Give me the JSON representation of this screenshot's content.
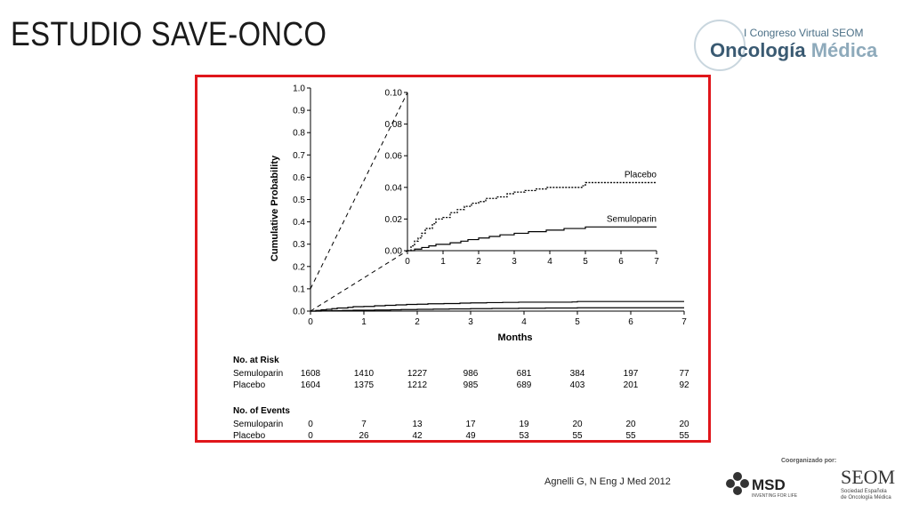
{
  "slide": {
    "title": "ESTUDIO SAVE-ONCO",
    "citation": "Agnelli G, N Eng J Med 2012"
  },
  "logos": {
    "congress_line1": "I Congreso Virtual SEOM",
    "congress_line2a": "ncología",
    "congress_line2b": "Médica",
    "coorganized": "Coorganizado por:",
    "msd": "MSD",
    "msd_sub": "INVENTING FOR LIFE",
    "seom": "SEOM",
    "seom_sub1": "Sociedad Española",
    "seom_sub2": "de Oncología Médica"
  },
  "colors": {
    "frame": "#e0161b",
    "title": "#1a1a1a"
  },
  "chart_data": {
    "type": "line",
    "xlabel": "Months",
    "ylabel": "Cumulative Probability",
    "xlim": [
      0,
      7
    ],
    "ylim": [
      0,
      1.0
    ],
    "x_ticks": [
      "0",
      "1",
      "2",
      "3",
      "4",
      "5",
      "6",
      "7"
    ],
    "y_ticks": [
      "0.0",
      "0.1",
      "0.2",
      "0.3",
      "0.4",
      "0.5",
      "0.6",
      "0.7",
      "0.8",
      "0.9",
      "1.0"
    ],
    "series": [
      {
        "name": "Placebo",
        "style": "dotted-step",
        "points": [
          [
            0,
            0
          ],
          [
            0.1,
            0.003
          ],
          [
            0.2,
            0.006
          ],
          [
            0.3,
            0.008
          ],
          [
            0.4,
            0.011
          ],
          [
            0.5,
            0.014
          ],
          [
            0.7,
            0.017
          ],
          [
            0.8,
            0.02
          ],
          [
            1.0,
            0.021
          ],
          [
            1.2,
            0.024
          ],
          [
            1.4,
            0.026
          ],
          [
            1.6,
            0.028
          ],
          [
            1.8,
            0.03
          ],
          [
            2.0,
            0.031
          ],
          [
            2.2,
            0.033
          ],
          [
            2.5,
            0.034
          ],
          [
            2.8,
            0.036
          ],
          [
            3.0,
            0.037
          ],
          [
            3.3,
            0.038
          ],
          [
            3.6,
            0.039
          ],
          [
            3.9,
            0.04
          ],
          [
            4.5,
            0.04
          ],
          [
            4.9,
            0.041
          ],
          [
            5.0,
            0.043
          ],
          [
            7,
            0.043
          ]
        ]
      },
      {
        "name": "Semuloparin",
        "style": "solid-step",
        "points": [
          [
            0,
            0
          ],
          [
            0.2,
            0.001
          ],
          [
            0.4,
            0.002
          ],
          [
            0.6,
            0.003
          ],
          [
            0.8,
            0.004
          ],
          [
            1.0,
            0.004
          ],
          [
            1.2,
            0.005
          ],
          [
            1.5,
            0.006
          ],
          [
            1.7,
            0.007
          ],
          [
            2.0,
            0.008
          ],
          [
            2.3,
            0.009
          ],
          [
            2.6,
            0.01
          ],
          [
            3.0,
            0.011
          ],
          [
            3.4,
            0.012
          ],
          [
            3.9,
            0.013
          ],
          [
            4.4,
            0.014
          ],
          [
            5.0,
            0.015
          ],
          [
            7,
            0.015
          ]
        ]
      }
    ],
    "inset": {
      "xlim": [
        0,
        7
      ],
      "ylim": [
        0,
        0.1
      ],
      "x_ticks": [
        "0",
        "1",
        "2",
        "3",
        "4",
        "5",
        "6",
        "7"
      ],
      "y_ticks": [
        "0.00",
        "0.02",
        "0.04",
        "0.06",
        "0.08",
        "0.10"
      ]
    },
    "risk_table": {
      "at_risk_title": "No. at Risk",
      "events_title": "No. of Events",
      "at_risk": [
        {
          "label": "Semuloparin",
          "values": [
            "1608",
            "1410",
            "1227",
            "986",
            "681",
            "384",
            "197",
            "77"
          ]
        },
        {
          "label": "Placebo",
          "values": [
            "1604",
            "1375",
            "1212",
            "985",
            "689",
            "403",
            "201",
            "92"
          ]
        }
      ],
      "events": [
        {
          "label": "Semuloparin",
          "values": [
            "0",
            "7",
            "13",
            "17",
            "19",
            "20",
            "20",
            "20"
          ]
        },
        {
          "label": "Placebo",
          "values": [
            "0",
            "26",
            "42",
            "49",
            "53",
            "55",
            "55",
            "55"
          ]
        }
      ]
    }
  }
}
